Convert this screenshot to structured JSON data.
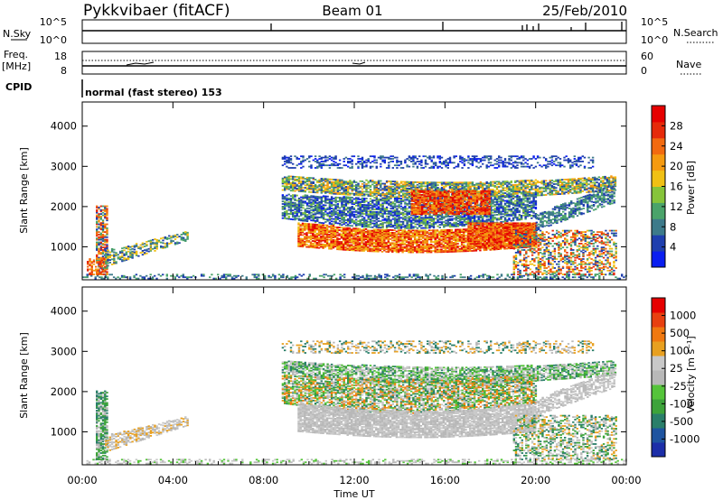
{
  "header": {
    "radar": "Pykkvibaer (fitACF)",
    "beam": "Beam 01",
    "date": "25/Feb/2010"
  },
  "status_panels": {
    "nsky_label": "N.Sky",
    "nsky_ticks": [
      "10^5",
      "10^0"
    ],
    "nsearch_label": "N.Search",
    "nsearch_ticks": [
      "10^5",
      "10^0"
    ],
    "freq_label": "Freq.",
    "freq_unit": "[MHz]",
    "freq_ticks": [
      "18",
      "8"
    ],
    "nave_label": "Nave",
    "nave_ticks": [
      "60",
      "0"
    ],
    "cpid_label": "CPID",
    "cpid_text": "normal (fast stereo) 153"
  },
  "colors": {
    "power_scale": [
      "#0a1ef0",
      "#1f3fae",
      "#3d7a8a",
      "#4aa36a",
      "#86c43a",
      "#f0c014",
      "#f59a10",
      "#f26a10",
      "#e62a0a",
      "#e60000"
    ],
    "velocity_scale": [
      "#1c2ea8",
      "#1e54a0",
      "#2a7f6a",
      "#3da33a",
      "#55c43a",
      "#b8b8b8",
      "#c8c8c8",
      "#e8a020",
      "#f07810",
      "#e84010",
      "#e60000"
    ]
  },
  "chart_data": [
    {
      "type": "heatmap",
      "ylabel": "Slant Range [km]",
      "xlabel": "Time UT",
      "x_ticks": [
        "00:00",
        "04:00",
        "08:00",
        "12:00",
        "16:00",
        "20:00",
        "00:00"
      ],
      "y_ticks": [
        "1000",
        "2000",
        "3000",
        "4000"
      ],
      "x_range_hours": [
        0,
        24
      ],
      "y_range_km": [
        180,
        4600
      ],
      "colorbar": {
        "label": "Power [dB]",
        "range": [
          0,
          30
        ],
        "ticks": [
          "28",
          "24",
          "20",
          "16",
          "12",
          "8",
          "4"
        ]
      }
    },
    {
      "type": "heatmap",
      "ylabel": "Slant Range [km]",
      "xlabel": "Time UT",
      "x_ticks": [
        "00:00",
        "04:00",
        "08:00",
        "12:00",
        "16:00",
        "20:00",
        "00:00"
      ],
      "y_ticks": [
        "1000",
        "2000",
        "3000",
        "4000"
      ],
      "x_range_hours": [
        0,
        24
      ],
      "y_range_km": [
        180,
        4600
      ],
      "colorbar": {
        "label": "Velocity [m s⁻¹]",
        "ticks": [
          "1000",
          "500",
          "100",
          "25",
          "-25",
          "-100",
          "-500",
          "-1000"
        ]
      }
    }
  ]
}
